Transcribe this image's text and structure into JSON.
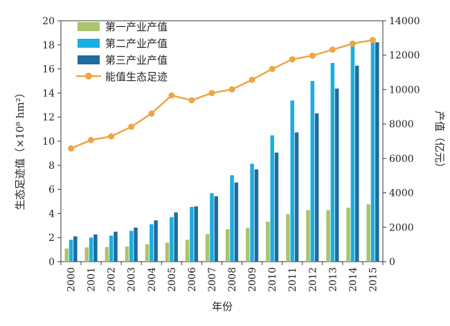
{
  "chart_data": {
    "type": "bar",
    "xlabel": "年份",
    "ylabel_left": "生态足迹值（×10⁸ hm²）",
    "ylabel_right": "产值（亿元）",
    "categories": [
      "2000",
      "2001",
      "2002",
      "2003",
      "2004",
      "2005",
      "2006",
      "2007",
      "2008",
      "2009",
      "2010",
      "2011",
      "2012",
      "2013",
      "2014",
      "2015"
    ],
    "ylim_left": [
      0,
      20
    ],
    "yticks_left": [
      0,
      2,
      4,
      6,
      8,
      10,
      12,
      14,
      16,
      18,
      20
    ],
    "ylim_right": [
      0,
      14000
    ],
    "yticks_right": [
      0,
      2000,
      4000,
      6000,
      8000,
      10000,
      12000,
      14000
    ],
    "legend_position": "top-left",
    "grid": false,
    "series": [
      {
        "name": "第一产业产值",
        "type": "bar",
        "axis": "right",
        "color": "#a9c46c",
        "values": [
          760,
          830,
          850,
          880,
          1010,
          1100,
          1270,
          1600,
          1880,
          1950,
          2320,
          2760,
          3000,
          2990,
          3130,
          3330
        ]
      },
      {
        "name": "第二产业产值",
        "type": "bar",
        "axis": "right",
        "color": "#1aaee2",
        "values": [
          1270,
          1400,
          1510,
          1790,
          2170,
          2590,
          3180,
          3980,
          5020,
          5690,
          7340,
          9370,
          10500,
          11550,
          12560,
          12800
        ]
      },
      {
        "name": "第三产业产值",
        "type": "bar",
        "axis": "right",
        "color": "#1e6c9e",
        "values": [
          1470,
          1580,
          1740,
          1980,
          2400,
          2860,
          3210,
          3800,
          4600,
          5360,
          6340,
          7510,
          8620,
          10060,
          11390,
          12750
        ]
      },
      {
        "name": "能值生态足迹",
        "type": "line",
        "axis": "left",
        "color": "#f0a444",
        "values": [
          9.4,
          10.1,
          10.4,
          11.2,
          12.3,
          13.8,
          13.4,
          14.0,
          14.3,
          15.1,
          16.0,
          16.8,
          17.1,
          17.6,
          18.1,
          18.4
        ]
      }
    ]
  }
}
